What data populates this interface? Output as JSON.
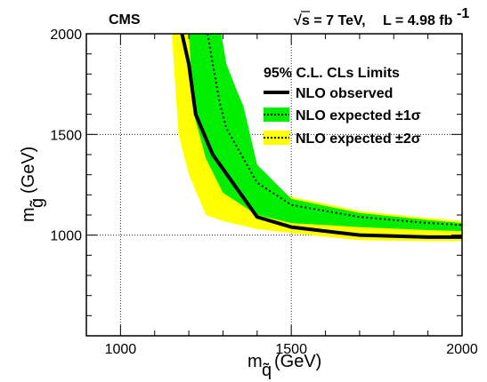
{
  "chart_data": {
    "type": "area",
    "experiment": "CMS",
    "sqrt_s_symbol": "√",
    "energy_text": "s = 7 TeV,",
    "lumi_text": "L = 4.98 fb",
    "lumi_exponent": "-1",
    "xlabel_main": "m",
    "xlabel_sub": "q̃",
    "xlabel_unit": "(GeV)",
    "ylabel_main": "m",
    "ylabel_sub": "g̃",
    "ylabel_unit": "(GeV)",
    "xlim": [
      900,
      2000
    ],
    "ylim": [
      500,
      2000
    ],
    "xticks": [
      1000,
      1500,
      2000
    ],
    "yticks": [
      1000,
      1500,
      2000
    ],
    "grid": true,
    "legend": {
      "placement": "top-right",
      "title": "95% C.L. CLs Limits",
      "entries": [
        {
          "label": "NLO observed",
          "style": "solid-line"
        },
        {
          "label": "NLO expected ±1σ",
          "style": "dotted-green-box"
        },
        {
          "label": "NLO expected ±2σ",
          "style": "dotted-yellow-box"
        }
      ]
    },
    "colors": {
      "band2sigma": "#ffff00",
      "band1sigma": "#00ee00",
      "observed": "#000000",
      "expected": "#000000"
    },
    "series": [
      {
        "name": "NLO observed",
        "x": [
          1180,
          1200,
          1220,
          1270,
          1400,
          1500,
          1700,
          1900,
          2000
        ],
        "y": [
          2000,
          1850,
          1600,
          1400,
          1090,
          1040,
          1000,
          990,
          990
        ]
      },
      {
        "name": "NLO expected",
        "x": [
          1255,
          1270,
          1290,
          1310,
          1400,
          1500,
          1700,
          1900,
          2000
        ],
        "y": [
          2000,
          1850,
          1660,
          1530,
          1260,
          1150,
          1090,
          1060,
          1050
        ]
      }
    ],
    "bands": [
      {
        "name": "NLO expected ±2σ",
        "upper_x": [
          1245,
          1260,
          1290,
          1310,
          1400,
          1500,
          1700,
          1900,
          2000
        ],
        "upper_y": [
          2000,
          1850,
          1720,
          1640,
          1290,
          1190,
          1120,
          1085,
          1070
        ],
        "lower_x": [
          2000,
          1900,
          1700,
          1500,
          1400,
          1300,
          1250,
          1200,
          1170,
          1150
        ],
        "lower_y": [
          970,
          970,
          975,
          1010,
          1030,
          1070,
          1100,
          1300,
          1500,
          2000
        ]
      },
      {
        "name": "NLO expected ±1σ",
        "upper_x": [
          1295,
          1310,
          1340,
          1360,
          1400,
          1500,
          1700,
          1900,
          2000
        ],
        "upper_y": [
          2000,
          1850,
          1720,
          1640,
          1350,
          1180,
          1110,
          1075,
          1060
        ],
        "lower_x": [
          2000,
          1900,
          1700,
          1500,
          1400,
          1300,
          1250,
          1215,
          1200
        ],
        "lower_y": [
          1020,
          1025,
          1040,
          1060,
          1100,
          1210,
          1380,
          1600,
          2000
        ]
      }
    ]
  }
}
